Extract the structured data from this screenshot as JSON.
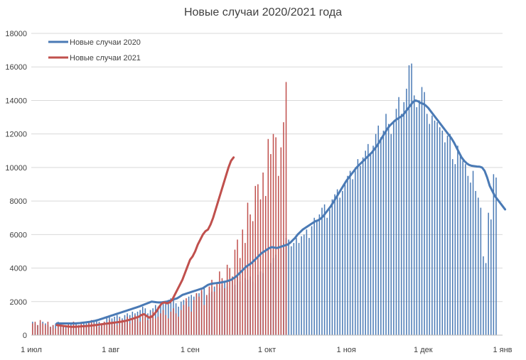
{
  "chart_data": {
    "type": "bar+line",
    "title": "Новые случаи 2020/2021 года",
    "xlabel": "",
    "ylabel": "",
    "ylim": [
      0,
      18000
    ],
    "yticks": [
      0,
      2000,
      4000,
      6000,
      8000,
      10000,
      12000,
      14000,
      16000,
      18000
    ],
    "xlim_days": [
      0,
      184
    ],
    "xticks": [
      {
        "day": 0,
        "label": "1 июл"
      },
      {
        "day": 31,
        "label": "1 авг"
      },
      {
        "day": 62,
        "label": "1 сен"
      },
      {
        "day": 92,
        "label": "1 окт"
      },
      {
        "day": 123,
        "label": "1 ноя"
      },
      {
        "day": 153,
        "label": "1 дек"
      },
      {
        "day": 184,
        "label": "1 янв"
      }
    ],
    "legend": [
      {
        "label": "Новые случаи 2020",
        "color": "#4a7ab5"
      },
      {
        "label": "Новые случаи 2021",
        "color": "#c0504d"
      }
    ],
    "series": [
      {
        "name": "Новые случаи 2020",
        "color": "#4a7ab5",
        "avg_start_day": 10,
        "daily_x_start": 0,
        "daily": [
          800,
          700,
          600,
          700,
          800,
          700,
          600,
          500,
          600,
          700,
          800,
          700,
          600,
          600,
          500,
          700,
          800,
          700,
          600,
          700,
          800,
          700,
          800,
          700,
          800,
          900,
          800,
          700,
          800,
          1100,
          1100,
          1000,
          1100,
          1200,
          1100,
          1000,
          1200,
          1300,
          1200,
          1400,
          1300,
          1400,
          1500,
          1700,
          1600,
          1300,
          1500,
          1600,
          1800,
          1700,
          1800,
          2000,
          1900,
          2100,
          2200,
          2300,
          1900,
          1700,
          2000,
          2100,
          2000,
          2300,
          2400,
          2300,
          2500,
          2500,
          2600,
          2800,
          2300,
          2500,
          2600,
          2900,
          2700,
          2800,
          3000,
          3200,
          2900,
          3100,
          3400,
          3000,
          3500,
          3200,
          3100,
          3400,
          3300,
          3500,
          3200,
          3100,
          3600,
          3800,
          3700,
          4000,
          4200,
          4300,
          4600,
          4800,
          4500,
          5100,
          5500,
          5800,
          5700,
          5300,
          5500,
          5800,
          5500,
          5900,
          6000,
          6300,
          5800,
          6500,
          7000,
          6800,
          7200,
          7600,
          7800,
          7000,
          7500,
          8100,
          8400,
          8700,
          8200,
          8600,
          9100,
          9500,
          9800,
          9300,
          10000,
          10500,
          10100,
          10600,
          11000,
          11400,
          10800,
          11300,
          12000,
          12500,
          11800,
          12200,
          13200,
          12600,
          12000,
          12800,
          13500,
          14200,
          13200,
          13900,
          14700,
          16100,
          16200,
          14300,
          13600,
          14000,
          14800,
          14500,
          13200,
          12600,
          13100,
          12800,
          12700,
          12400,
          12200,
          11500,
          11900,
          12000,
          10500,
          10200,
          11300,
          10800,
          10400,
          10200,
          9500,
          9100,
          9800,
          8600,
          8200,
          7600,
          4700,
          4300,
          7300,
          6900,
          9600,
          9400
        ],
        "avg": [
          700,
          700,
          700,
          700,
          700,
          700,
          700,
          700,
          710,
          720,
          740,
          760,
          780,
          800,
          830,
          860,
          900,
          950,
          1000,
          1050,
          1100,
          1150,
          1200,
          1250,
          1300,
          1350,
          1400,
          1450,
          1500,
          1550,
          1600,
          1650,
          1700,
          1760,
          1820,
          1880,
          1940,
          2000,
          1980,
          1960,
          1950,
          1960,
          1980,
          2000,
          2050,
          2100,
          2150,
          2200,
          2300,
          2400,
          2450,
          2500,
          2550,
          2600,
          2650,
          2700,
          2750,
          2800,
          2900,
          3000,
          3050,
          3080,
          3100,
          3120,
          3140,
          3170,
          3200,
          3250,
          3300,
          3400,
          3500,
          3650,
          3800,
          3950,
          4100,
          4200,
          4300,
          4450,
          4600,
          4750,
          4900,
          5000,
          5100,
          5200,
          5250,
          5220,
          5200,
          5250,
          5300,
          5350,
          5400,
          5500,
          5650,
          5800,
          6000,
          6150,
          6300,
          6400,
          6500,
          6600,
          6700,
          6800,
          6850,
          6950,
          7100,
          7300,
          7500,
          7700,
          7950,
          8200,
          8450,
          8700,
          8950,
          9200,
          9400,
          9600,
          9800,
          10000,
          10150,
          10300,
          10450,
          10600,
          10750,
          10900,
          11100,
          11300,
          11550,
          11800,
          12050,
          12300,
          12500,
          12650,
          12800,
          12900,
          13000,
          13100,
          13300,
          13500,
          13700,
          13900,
          14000,
          13950,
          13850,
          13800,
          13700,
          13550,
          13350,
          13150,
          12950,
          12750,
          12550,
          12350,
          12150,
          11950,
          11750,
          11500,
          11200,
          10900,
          10600,
          10400,
          10250,
          10150,
          10100,
          10080,
          10060,
          10050,
          10000,
          9800,
          9400,
          8900,
          8600,
          8300,
          8100,
          7900,
          7700,
          7500
        ]
      },
      {
        "name": "Новые случаи 2021",
        "color": "#c0504d",
        "avg_start_day": 10,
        "daily_x_start": 0,
        "daily": [
          700,
          800,
          600,
          900,
          700,
          600,
          800,
          500,
          600,
          400,
          700,
          500,
          600,
          400,
          700,
          500,
          800,
          600,
          500,
          700,
          600,
          500,
          800,
          900,
          700,
          600,
          500,
          700,
          800,
          600,
          900,
          700,
          800,
          600,
          1000,
          900,
          800,
          1100,
          700,
          900,
          1200,
          1000,
          800,
          1300,
          1100,
          900,
          1200,
          1400,
          1000,
          1100,
          1300,
          1500,
          1200,
          1000,
          1400,
          1600,
          1300,
          1100,
          1500,
          1800,
          2200,
          1700,
          1400,
          2100,
          2500,
          2300,
          2700,
          1800,
          2400,
          2900,
          3300,
          2600,
          3100,
          3800,
          3400,
          2800,
          4200,
          4000,
          3500,
          5100,
          5700,
          4600,
          6300,
          5500,
          7900,
          7200,
          6800,
          8900,
          9000,
          8100,
          9700,
          8300,
          11700,
          10800,
          12000,
          11800,
          9500,
          11200,
          12700,
          15100
        ],
        "avg": [
          600,
          580,
          560,
          540,
          520,
          510,
          500,
          500,
          510,
          520,
          530,
          540,
          550,
          560,
          580,
          600,
          620,
          640,
          660,
          680,
          700,
          720,
          740,
          760,
          780,
          800,
          830,
          860,
          900,
          950,
          1000,
          1050,
          1100,
          1200,
          1250,
          1150,
          1050,
          1100,
          1250,
          1450,
          1700,
          1900,
          1950,
          1900,
          1950,
          2100,
          2400,
          2700,
          3000,
          3300,
          3700,
          4100,
          4500,
          4700,
          5000,
          5400,
          5700,
          6000,
          6200,
          6300,
          6600,
          7000,
          7500,
          8000,
          8500,
          9000,
          9500,
          10000,
          10400,
          10600
        ]
      }
    ]
  }
}
